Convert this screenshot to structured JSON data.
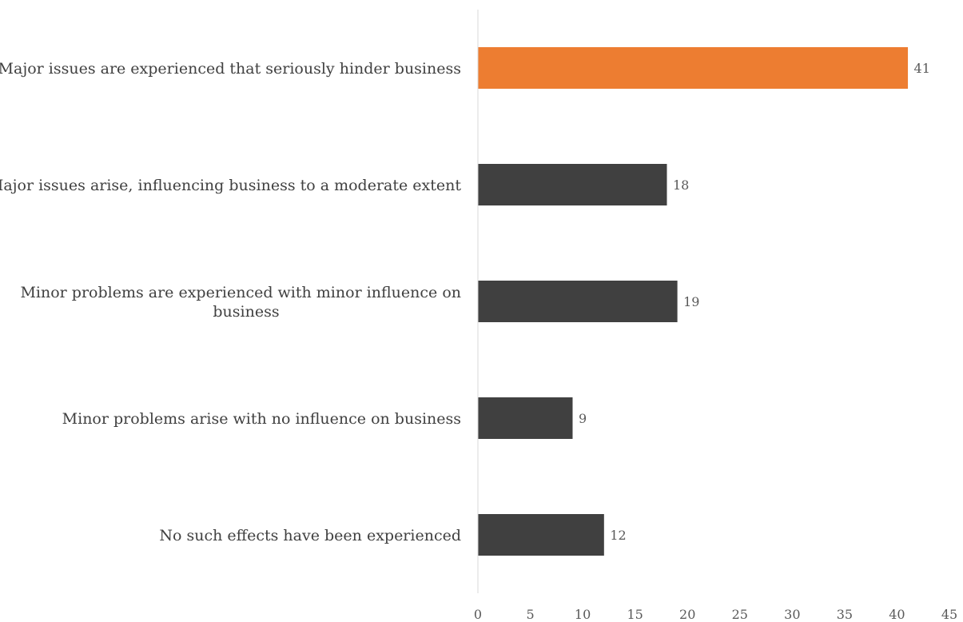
{
  "chart_data": {
    "type": "bar",
    "orientation": "horizontal",
    "categories": [
      [
        "Major issues are experienced that seriously hinder business"
      ],
      [
        "Major issues arise, influencing business to a moderate extent"
      ],
      [
        "Minor problems are experienced with minor influence on",
        "business"
      ],
      [
        "Minor problems arise with no influence on business"
      ],
      [
        "No such effects have been experienced"
      ]
    ],
    "values": [
      41,
      18,
      19,
      9,
      12
    ],
    "data_labels": [
      "41",
      "18",
      "19",
      "9",
      "12"
    ],
    "highlight_index": 0,
    "colors": {
      "highlight": "#ED7D31",
      "default": "#404040",
      "axis": "#d9d9d9"
    },
    "xlim": [
      0,
      45
    ],
    "xticks": [
      0,
      5,
      10,
      15,
      20,
      25,
      30,
      35,
      40,
      45
    ],
    "grid": false,
    "title": "",
    "xlabel": "",
    "ylabel": ""
  }
}
